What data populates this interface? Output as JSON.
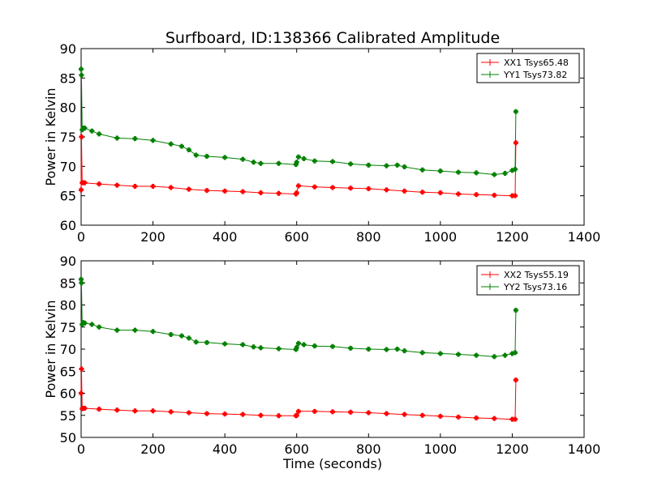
{
  "chart_data": [
    {
      "type": "line",
      "title": "Surfboard, ID:138366 Calibrated Amplitude",
      "xlabel": "",
      "ylabel": "Power in Kelvin",
      "xlim": [
        0,
        1400
      ],
      "ylim": [
        60,
        90
      ],
      "xticks": [
        "0",
        "200",
        "400",
        "600",
        "800",
        "1000",
        "1200",
        "1400"
      ],
      "yticks": [
        "60",
        "65",
        "70",
        "75",
        "80",
        "85",
        "90"
      ],
      "grid": false,
      "legend": "top-right",
      "series": [
        {
          "name": "XX1 Tsys65.48",
          "color": "#ff0000",
          "x": [
            0,
            1,
            3,
            5,
            10,
            50,
            100,
            150,
            200,
            250,
            300,
            350,
            400,
            450,
            500,
            550,
            598,
            600,
            605,
            650,
            700,
            750,
            800,
            850,
            900,
            950,
            1000,
            1050,
            1100,
            1150,
            1200,
            1208,
            1210
          ],
          "y": [
            66.0,
            75.0,
            67.2,
            67.2,
            67.2,
            67.0,
            66.8,
            66.6,
            66.6,
            66.4,
            66.1,
            65.9,
            65.8,
            65.7,
            65.5,
            65.4,
            65.3,
            65.5,
            66.7,
            66.5,
            66.4,
            66.3,
            66.2,
            66.0,
            65.8,
            65.6,
            65.5,
            65.3,
            65.2,
            65.1,
            65.0,
            65.0,
            74.0
          ]
        },
        {
          "name": "YY1 Tsys73.82",
          "color": "#008000",
          "x": [
            0,
            1,
            3,
            6,
            10,
            30,
            50,
            100,
            150,
            200,
            250,
            280,
            300,
            320,
            350,
            400,
            450,
            480,
            500,
            550,
            598,
            600,
            605,
            620,
            650,
            700,
            750,
            800,
            850,
            880,
            900,
            950,
            1000,
            1050,
            1100,
            1150,
            1180,
            1200,
            1208,
            1210
          ],
          "y": [
            86.5,
            85.5,
            76.2,
            76.5,
            76.5,
            76.0,
            75.5,
            74.8,
            74.7,
            74.4,
            73.8,
            73.4,
            72.8,
            71.9,
            71.7,
            71.5,
            71.2,
            70.7,
            70.5,
            70.5,
            70.3,
            70.7,
            71.6,
            71.3,
            70.9,
            70.8,
            70.4,
            70.2,
            70.1,
            70.2,
            69.9,
            69.4,
            69.2,
            69.0,
            68.9,
            68.6,
            68.8,
            69.3,
            69.5,
            79.3
          ]
        }
      ]
    },
    {
      "type": "line",
      "title": "",
      "xlabel": "Time (seconds)",
      "ylabel": "Power in Kelvin",
      "xlim": [
        0,
        1400
      ],
      "ylim": [
        50,
        90
      ],
      "xticks": [
        "0",
        "200",
        "400",
        "600",
        "800",
        "1000",
        "1200",
        "1400"
      ],
      "yticks": [
        "50",
        "55",
        "60",
        "65",
        "70",
        "75",
        "80",
        "85",
        "90"
      ],
      "grid": false,
      "legend": "top-right",
      "series": [
        {
          "name": "XX2 Tsys55.19",
          "color": "#ff0000",
          "x": [
            0,
            1,
            3,
            5,
            10,
            50,
            100,
            150,
            200,
            250,
            300,
            350,
            400,
            450,
            500,
            550,
            598,
            600,
            605,
            650,
            700,
            750,
            800,
            850,
            900,
            950,
            1000,
            1050,
            1100,
            1150,
            1200,
            1208,
            1210
          ],
          "y": [
            60.0,
            65.5,
            56.5,
            56.6,
            56.6,
            56.4,
            56.2,
            56.0,
            56.0,
            55.8,
            55.6,
            55.4,
            55.3,
            55.2,
            55.0,
            54.9,
            54.9,
            55.0,
            55.9,
            55.9,
            55.8,
            55.7,
            55.6,
            55.4,
            55.2,
            55.0,
            54.8,
            54.6,
            54.4,
            54.3,
            54.1,
            54.1,
            63.0
          ]
        },
        {
          "name": "YY2 Tsys73.16",
          "color": "#008000",
          "x": [
            0,
            1,
            3,
            6,
            10,
            30,
            50,
            100,
            150,
            200,
            250,
            280,
            300,
            320,
            350,
            400,
            450,
            480,
            500,
            550,
            598,
            600,
            605,
            620,
            650,
            700,
            750,
            800,
            850,
            880,
            900,
            950,
            1000,
            1050,
            1100,
            1150,
            1180,
            1200,
            1208,
            1210
          ],
          "y": [
            85.8,
            85.0,
            75.6,
            76.0,
            75.9,
            75.6,
            75.0,
            74.3,
            74.3,
            74.0,
            73.3,
            73.0,
            72.5,
            71.6,
            71.5,
            71.2,
            71.0,
            70.5,
            70.3,
            70.1,
            69.9,
            70.4,
            71.3,
            71.0,
            70.7,
            70.6,
            70.2,
            70.0,
            69.9,
            70.0,
            69.6,
            69.2,
            69.0,
            68.8,
            68.6,
            68.3,
            68.6,
            69.0,
            69.2,
            78.8
          ]
        }
      ]
    }
  ]
}
